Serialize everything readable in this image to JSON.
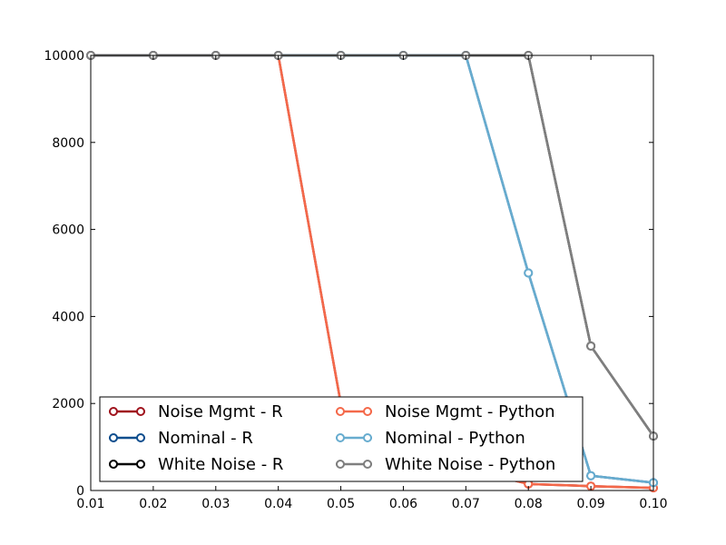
{
  "chart_data": {
    "type": "line",
    "title": "",
    "xlabel": "",
    "ylabel": "",
    "xlim": [
      0.01,
      0.1
    ],
    "ylim": [
      0,
      10000
    ],
    "x_ticks": [
      "0.01",
      "0.02",
      "0.03",
      "0.04",
      "0.05",
      "0.06",
      "0.07",
      "0.08",
      "0.09",
      "0.10"
    ],
    "y_ticks": [
      "0",
      "2000",
      "4000",
      "6000",
      "8000",
      "10000"
    ],
    "x": [
      0.01,
      0.02,
      0.03,
      0.04,
      0.05,
      0.06,
      0.07,
      0.08,
      0.09,
      0.1
    ],
    "grid": false,
    "legend_position": "bottom-left",
    "legend_columns": 2,
    "series": [
      {
        "name": "Noise Mgmt - R",
        "color": "#a0141e",
        "values": [
          10000,
          10000,
          10000,
          10000,
          2000,
          1000,
          500,
          150,
          100,
          60
        ],
        "marker": "open-circle"
      },
      {
        "name": "Nominal - R",
        "color": "#0e4e8e",
        "values": [
          10000,
          10000,
          10000,
          10000,
          10000,
          10000,
          10000,
          5000,
          340,
          180
        ],
        "marker": "open-circle"
      },
      {
        "name": "White Noise - R",
        "color": "#000000",
        "values": [
          10000,
          10000,
          10000,
          10000,
          10000,
          10000,
          10000,
          10000,
          3320,
          1250
        ],
        "marker": "open-circle"
      },
      {
        "name": "Noise Mgmt - Python",
        "color": "#f4694a",
        "values": [
          10000,
          10000,
          10000,
          10000,
          2000,
          1000,
          500,
          150,
          100,
          60
        ],
        "marker": "open-circle"
      },
      {
        "name": "Nominal - Python",
        "color": "#67accf",
        "values": [
          10000,
          10000,
          10000,
          10000,
          10000,
          10000,
          10000,
          5000,
          340,
          180
        ],
        "marker": "open-circle"
      },
      {
        "name": "White Noise - Python",
        "color": "#7f7f7f",
        "values": [
          10000,
          10000,
          10000,
          10000,
          10000,
          10000,
          10000,
          10000,
          3320,
          1250
        ],
        "marker": "open-circle"
      }
    ]
  }
}
